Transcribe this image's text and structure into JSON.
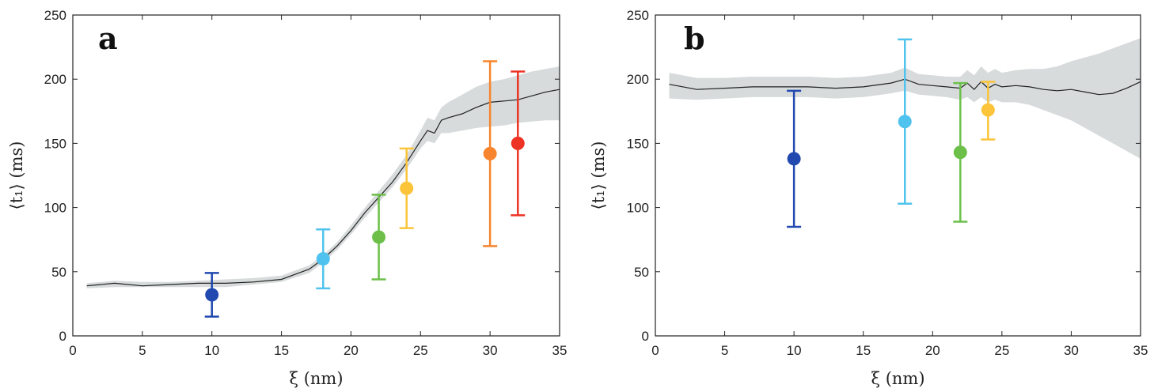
{
  "chart_data": [
    {
      "type": "scatter",
      "panel_label": "a",
      "xlabel": "ξ (nm)",
      "ylabel": "⟨t₁⟩ (ms)",
      "xlim": [
        0,
        35
      ],
      "ylim": [
        0,
        250
      ],
      "x_ticks": [
        0,
        5,
        10,
        15,
        20,
        25,
        30,
        35
      ],
      "y_ticks": [
        0,
        50,
        100,
        150,
        200,
        250
      ],
      "grid": false,
      "legend": "none",
      "curve": {
        "x": [
          1,
          3,
          5,
          7,
          9,
          11,
          13,
          15,
          17,
          18,
          19,
          20,
          21,
          22,
          23,
          24,
          25,
          25.5,
          26,
          26.5,
          27,
          28,
          29,
          30,
          31,
          32,
          33,
          34,
          35
        ],
        "y": [
          39,
          41,
          39,
          40,
          41,
          41,
          42,
          44,
          52,
          60,
          70,
          82,
          96,
          108,
          120,
          135,
          152,
          160,
          158,
          168,
          170,
          173,
          178,
          182,
          183,
          184,
          187,
          190,
          192
        ],
        "band_lower": [
          37,
          38,
          38,
          38,
          38,
          38,
          40,
          42,
          49,
          57,
          67,
          79,
          92,
          104,
          116,
          130,
          146,
          152,
          150,
          158,
          158,
          160,
          162,
          163,
          164,
          166,
          167,
          168,
          168
        ],
        "band_upper": [
          41,
          43,
          42,
          42,
          43,
          44,
          45,
          47,
          55,
          63,
          73,
          86,
          100,
          113,
          126,
          141,
          160,
          170,
          168,
          178,
          182,
          188,
          194,
          198,
          200,
          203,
          206,
          208,
          210
        ],
        "line_color": "#222222",
        "band_color": "#d7dbdb"
      },
      "points": [
        {
          "x": 10,
          "y": 32,
          "err_low": 15,
          "err_high": 49,
          "color": "#2149b0"
        },
        {
          "x": 18,
          "y": 60,
          "err_low": 37,
          "err_high": 83,
          "color": "#4fc3ee"
        },
        {
          "x": 22,
          "y": 77,
          "err_low": 44,
          "err_high": 110,
          "color": "#6cc04a"
        },
        {
          "x": 24,
          "y": 115,
          "err_low": 84,
          "err_high": 146,
          "color": "#fbc43a"
        },
        {
          "x": 30,
          "y": 142,
          "err_low": 70,
          "err_high": 214,
          "color": "#f6852d"
        },
        {
          "x": 32,
          "y": 150,
          "err_low": 94,
          "err_high": 206,
          "color": "#ec3324"
        }
      ]
    },
    {
      "type": "scatter",
      "panel_label": "b",
      "xlabel": "ξ (nm)",
      "ylabel": "⟨t₁⟩ (ms)",
      "xlim": [
        0,
        35
      ],
      "ylim": [
        0,
        250
      ],
      "x_ticks": [
        0,
        5,
        10,
        15,
        20,
        25,
        30,
        35
      ],
      "y_ticks": [
        0,
        50,
        100,
        150,
        200,
        250
      ],
      "grid": false,
      "legend": "none",
      "curve": {
        "x": [
          1,
          3,
          5,
          7,
          9,
          11,
          13,
          15,
          17,
          18,
          19,
          20,
          21,
          22,
          22.5,
          23,
          23.5,
          24,
          24.5,
          25,
          26,
          27,
          28,
          29,
          30,
          31,
          32,
          33,
          34,
          35
        ],
        "y": [
          196,
          192,
          193,
          194,
          194,
          194,
          193,
          194,
          197,
          200,
          196,
          195,
          194,
          193,
          197,
          192,
          198,
          193,
          196,
          194,
          195,
          194,
          192,
          191,
          192,
          190,
          188,
          189,
          193,
          198
        ],
        "band_lower": [
          185,
          184,
          185,
          186,
          186,
          186,
          185,
          186,
          189,
          191,
          188,
          187,
          186,
          184,
          186,
          182,
          186,
          182,
          184,
          182,
          182,
          180,
          176,
          172,
          168,
          162,
          156,
          150,
          144,
          138
        ],
        "band_upper": [
          205,
          201,
          201,
          202,
          202,
          202,
          201,
          202,
          205,
          209,
          204,
          203,
          202,
          202,
          207,
          203,
          210,
          205,
          208,
          205,
          207,
          208,
          208,
          210,
          214,
          217,
          220,
          224,
          228,
          232
        ],
        "line_color": "#222222",
        "band_color": "#d7dbdb"
      },
      "points": [
        {
          "x": 10,
          "y": 138,
          "err_low": 85,
          "err_high": 191,
          "color": "#2149b0"
        },
        {
          "x": 18,
          "y": 167,
          "err_low": 103,
          "err_high": 231,
          "color": "#4fc3ee"
        },
        {
          "x": 22,
          "y": 143,
          "err_low": 89,
          "err_high": 197,
          "color": "#6cc04a"
        },
        {
          "x": 24,
          "y": 176,
          "err_low": 153,
          "err_high": 198,
          "color": "#fbc43a"
        }
      ]
    }
  ]
}
